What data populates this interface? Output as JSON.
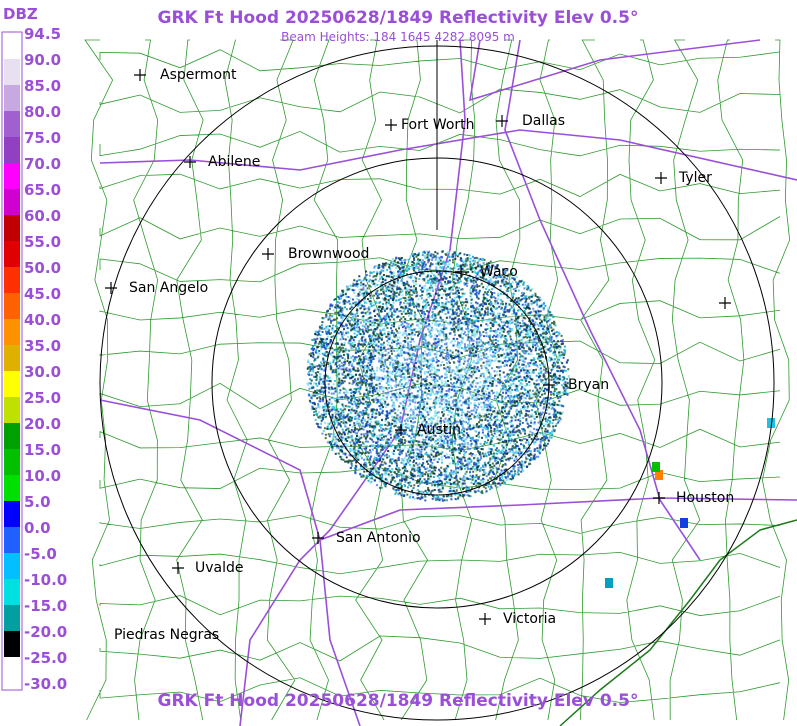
{
  "header": {
    "title": "GRK Ft Hood 20250628/1849 Reflectivity Elev 0.5°",
    "subtitle": "Beam Heights: 184 1645 4282 8095 m"
  },
  "footer": {
    "title": "GRK Ft Hood 20250628/1849 Reflectivity Elev 0.5°"
  },
  "legend": {
    "unit": "DBZ",
    "labels": [
      "94.5",
      "90.0",
      "85.0",
      "80.0",
      "75.0",
      "70.0",
      "65.0",
      "60.0",
      "55.0",
      "50.0",
      "45.0",
      "40.0",
      "35.0",
      "30.0",
      "25.0",
      "20.0",
      "15.0",
      "10.0",
      "5.0",
      "0.0",
      "-5.0",
      "-10.0",
      "-15.0",
      "-20.0",
      "-25.0",
      "-30.0"
    ]
  },
  "cities": [
    "Aspermont",
    "Fort Worth",
    "Dallas",
    "Abilene",
    "Tyler",
    "Brownwood",
    "Waco",
    "San Angelo",
    "Bryan",
    "Austin",
    "Houston",
    "San Antonio",
    "Uvalde",
    "Victoria",
    "Piedras Negras"
  ]
}
